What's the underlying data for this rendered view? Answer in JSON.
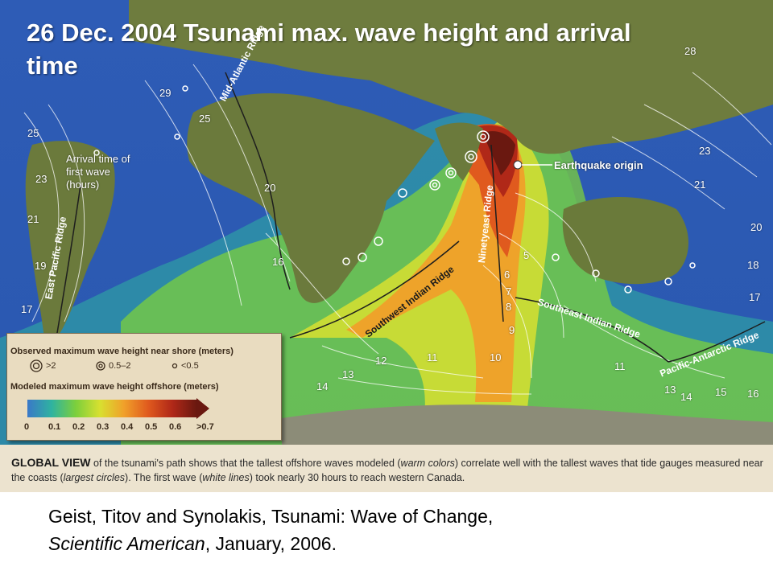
{
  "slide_title": "26 Dec. 2004 Tsunami max. wave height and arrival time",
  "map": {
    "arrival_label": "Arrival time of first wave (hours)",
    "origin_label": "Earthquake origin",
    "ridges": [
      "Mid-Atlantic Ridge",
      "East Pacific Ridge",
      "Ninetyeast Ridge",
      "Southwest Indian Ridge",
      "Southeast Indian Ridge",
      "Pacific-Antarctic Ridge"
    ],
    "contour_numbers": [
      "28",
      "29",
      "25",
      "23",
      "21",
      "19",
      "17",
      "20",
      "16",
      "25",
      "23",
      "21",
      "20",
      "18",
      "17",
      "5",
      "6",
      "7",
      "8",
      "9",
      "10",
      "11",
      "12",
      "13",
      "14",
      "11",
      "13",
      "14",
      "15",
      "16"
    ]
  },
  "legend": {
    "observed_title": "Observed maximum wave height near shore (meters)",
    "observed_items": [
      ">2",
      "0.5–2",
      "<0.5"
    ],
    "modeled_title": "Modeled maximum wave height offshore (meters)",
    "scale_ticks": [
      "0",
      "0.1",
      "0.2",
      "0.3",
      "0.4",
      "0.5",
      "0.6",
      ">0.7"
    ],
    "scale_colors": [
      "#3a78c8",
      "#2fb3a0",
      "#7ccf3c",
      "#d8e030",
      "#f0a02a",
      "#e05a1e",
      "#b02818",
      "#6a1810"
    ]
  },
  "caption": {
    "lead": "GLOBAL VIEW",
    "part1": " of the tsunami's path shows that the tallest offshore waves modeled (",
    "em1": "warm colors",
    "part2": ") correlate well with the tallest waves that tide gauges measured near the coasts (",
    "em2": "largest circles",
    "part3": "). The first wave (",
    "em3": "white lines",
    "part4": ") took nearly 30 hours to reach western Canada."
  },
  "citation": {
    "line1": "Geist, Titov and Synolakis, Tsunami: Wave of Change,",
    "journal": "Scientific American",
    "rest": ", January, 2006."
  }
}
